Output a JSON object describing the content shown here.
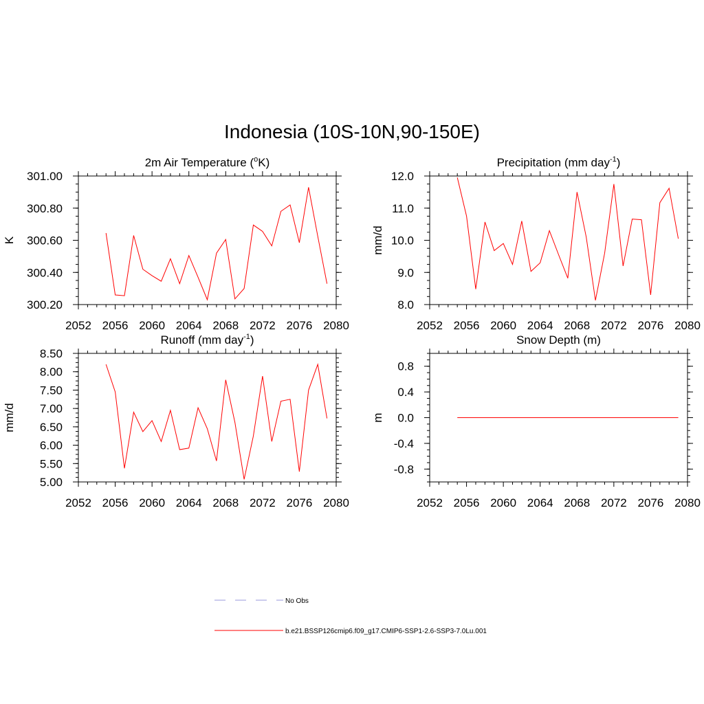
{
  "title": "Indonesia (10S-10N,90-150E)",
  "series_color": "#ff0000",
  "obs_color": "#9999dd",
  "legend": {
    "obs_label": "No Obs",
    "model_label": "b.e21.BSSP126cmip6.f09_g17.CMIP6-SSP1-2.6-SSP3-7.0Lu.001"
  },
  "chart_data": [
    {
      "type": "line",
      "title": "2m Air Temperature",
      "title_unit_prefix": "o",
      "title_unit_suffix": "K)",
      "ylabel": "K",
      "xlim": [
        2052,
        2080
      ],
      "ylim": [
        300.2,
        301.0
      ],
      "xticks": [
        2052,
        2056,
        2060,
        2064,
        2068,
        2072,
        2076,
        2080
      ],
      "yticks": [
        "300.20",
        "300.40",
        "300.60",
        "300.80",
        "301.00"
      ],
      "x": [
        2055,
        2056,
        2057,
        2058,
        2059,
        2060,
        2061,
        2062,
        2063,
        2064,
        2065,
        2066,
        2067,
        2068,
        2069,
        2070,
        2071,
        2072,
        2073,
        2074,
        2075,
        2076,
        2077,
        2078,
        2079
      ],
      "values": [
        300.645,
        300.26,
        300.255,
        300.63,
        300.42,
        300.38,
        300.345,
        300.485,
        300.33,
        300.505,
        300.37,
        300.23,
        300.52,
        300.605,
        300.235,
        300.3,
        300.695,
        300.655,
        300.565,
        300.78,
        300.82,
        300.585,
        300.93,
        300.625,
        300.33
      ]
    },
    {
      "type": "line",
      "title": "Precipitation (mm day",
      "title_sup": "-1",
      "title_close": ")",
      "ylabel": "mm/d",
      "xlim": [
        2052,
        2080
      ],
      "ylim": [
        8.0,
        12.0
      ],
      "xticks": [
        2052,
        2056,
        2060,
        2064,
        2068,
        2072,
        2076,
        2080
      ],
      "yticks": [
        "8.0",
        "9.0",
        "10.0",
        "11.0",
        "12.0"
      ],
      "x": [
        2055,
        2056,
        2057,
        2058,
        2059,
        2060,
        2061,
        2062,
        2063,
        2064,
        2065,
        2066,
        2067,
        2068,
        2069,
        2070,
        2071,
        2072,
        2073,
        2074,
        2075,
        2076,
        2077,
        2078,
        2079
      ],
      "values": [
        11.95,
        10.75,
        8.48,
        10.57,
        9.68,
        9.9,
        9.25,
        10.6,
        9.03,
        9.3,
        10.3,
        9.55,
        8.82,
        11.5,
        10.1,
        8.13,
        9.6,
        11.75,
        9.2,
        10.66,
        10.64,
        8.3,
        11.17,
        11.62,
        10.05
      ]
    },
    {
      "type": "line",
      "title": "Runoff (mm day",
      "title_sup": "-1",
      "title_close": ")",
      "ylabel": "mm/d",
      "xlim": [
        2052,
        2080
      ],
      "ylim": [
        5.0,
        8.5
      ],
      "xticks": [
        2052,
        2056,
        2060,
        2064,
        2068,
        2072,
        2076,
        2080
      ],
      "yticks": [
        "5.00",
        "5.50",
        "6.00",
        "6.50",
        "7.00",
        "7.50",
        "8.00",
        "8.50"
      ],
      "x": [
        2055,
        2056,
        2057,
        2058,
        2059,
        2060,
        2061,
        2062,
        2063,
        2064,
        2065,
        2066,
        2067,
        2068,
        2069,
        2070,
        2071,
        2072,
        2073,
        2074,
        2075,
        2076,
        2077,
        2078,
        2079
      ],
      "values": [
        8.2,
        7.45,
        5.37,
        6.9,
        6.37,
        6.67,
        6.1,
        6.95,
        5.88,
        5.92,
        7.02,
        6.45,
        5.57,
        7.78,
        6.62,
        5.07,
        6.25,
        7.88,
        6.1,
        7.2,
        7.25,
        5.28,
        7.5,
        8.2,
        6.73
      ]
    },
    {
      "type": "line",
      "title": "Snow Depth (m)",
      "ylabel": "m",
      "xlim": [
        2052,
        2080
      ],
      "ylim": [
        -1.0,
        1.0
      ],
      "xticks": [
        2052,
        2056,
        2060,
        2064,
        2068,
        2072,
        2076,
        2080
      ],
      "yticks": [
        "-0.8",
        "-0.4",
        "0.0",
        "0.4",
        "0.8"
      ],
      "x": [
        2055,
        2056,
        2057,
        2058,
        2059,
        2060,
        2061,
        2062,
        2063,
        2064,
        2065,
        2066,
        2067,
        2068,
        2069,
        2070,
        2071,
        2072,
        2073,
        2074,
        2075,
        2076,
        2077,
        2078,
        2079
      ],
      "values": [
        0,
        0,
        0,
        0,
        0,
        0,
        0,
        0,
        0,
        0,
        0,
        0,
        0,
        0,
        0,
        0,
        0,
        0,
        0,
        0,
        0,
        0,
        0,
        0,
        0
      ]
    }
  ]
}
